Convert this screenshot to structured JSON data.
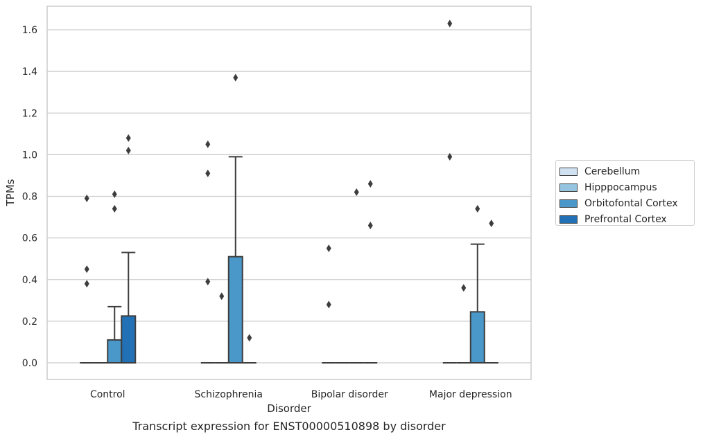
{
  "chart_data": {
    "type": "box",
    "title": "",
    "caption": "Transcript expression for ENST00000510898 by disorder",
    "xlabel": "Disorder",
    "ylabel": "TPMs",
    "ylim": [
      -0.08,
      1.72
    ],
    "yticks": [
      "0.0",
      "0.2",
      "0.4",
      "0.6",
      "0.8",
      "1.0",
      "1.2",
      "1.4",
      "1.6"
    ],
    "grid": true,
    "legend_position": "right",
    "categories": [
      "Control",
      "Schizophrenia",
      "Bipolar disorder",
      "Major depression"
    ],
    "series": [
      {
        "name": "Cerebellum",
        "color": "#d0e1f2",
        "boxes": [
          {
            "min": 0,
            "q1": 0,
            "median": 0,
            "q3": 0,
            "max": 0,
            "outliers": [
              0.79,
              0.45,
              0.38
            ]
          },
          {
            "min": 0,
            "q1": 0,
            "median": 0,
            "q3": 0,
            "max": 0,
            "outliers": [
              1.05,
              0.91,
              0.39
            ]
          },
          {
            "min": 0,
            "q1": 0,
            "median": 0,
            "q3": 0,
            "max": 0,
            "outliers": [
              0.55,
              0.28
            ]
          },
          {
            "min": 0,
            "q1": 0,
            "median": 0,
            "q3": 0,
            "max": 0,
            "outliers": [
              1.63,
              0.99
            ]
          }
        ]
      },
      {
        "name": "Hipppocampus",
        "color": "#94c4df",
        "boxes": [
          {
            "min": 0,
            "q1": 0,
            "median": 0,
            "q3": 0,
            "max": 0,
            "outliers": []
          },
          {
            "min": 0,
            "q1": 0,
            "median": 0,
            "q3": 0,
            "max": 0,
            "outliers": [
              0.32
            ]
          },
          {
            "min": 0,
            "q1": 0,
            "median": 0,
            "q3": 0,
            "max": 0,
            "outliers": []
          },
          {
            "min": 0,
            "q1": 0,
            "median": 0,
            "q3": 0,
            "max": 0,
            "outliers": [
              0.36
            ]
          }
        ]
      },
      {
        "name": "Orbitofontal Cortex",
        "color": "#4a98c9",
        "boxes": [
          {
            "min": 0,
            "q1": 0,
            "median": 0,
            "q3": 0.11,
            "max": 0.27,
            "outliers": [
              0.81,
              0.74
            ]
          },
          {
            "min": 0,
            "q1": 0,
            "median": 0,
            "q3": 0.51,
            "max": 0.99,
            "outliers": [
              1.37
            ]
          },
          {
            "min": 0,
            "q1": 0,
            "median": 0,
            "q3": 0,
            "max": 0,
            "outliers": [
              0.82
            ]
          },
          {
            "min": 0,
            "q1": 0,
            "median": 0,
            "q3": 0.245,
            "max": 0.57,
            "outliers": [
              0.74
            ]
          }
        ]
      },
      {
        "name": "Prefrontal Cortex",
        "color": "#2270b5",
        "boxes": [
          {
            "min": 0,
            "q1": 0,
            "median": 0,
            "q3": 0.225,
            "max": 0.53,
            "outliers": [
              1.08,
              1.02
            ]
          },
          {
            "min": 0,
            "q1": 0,
            "median": 0,
            "q3": 0,
            "max": 0,
            "outliers": [
              0.12
            ]
          },
          {
            "min": 0,
            "q1": 0,
            "median": 0,
            "q3": 0,
            "max": 0,
            "outliers": [
              0.86,
              0.66
            ]
          },
          {
            "min": 0,
            "q1": 0,
            "median": 0,
            "q3": 0,
            "max": 0,
            "outliers": [
              0.67
            ]
          }
        ]
      }
    ]
  }
}
